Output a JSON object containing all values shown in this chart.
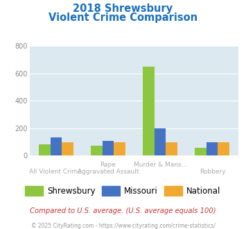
{
  "title_line1": "2018 Shrewsbury",
  "title_line2": "Violent Crime Comparison",
  "cat_labels_top": [
    "",
    "Rape",
    "Murder & Mans...",
    ""
  ],
  "cat_labels_bot": [
    "All Violent Crime",
    "Aggravated Assault",
    "",
    "Robbery"
  ],
  "shrewsbury": [
    85,
    75,
    650,
    60
  ],
  "missouri": [
    135,
    110,
    200,
    100
  ],
  "national": [
    100,
    100,
    100,
    100
  ],
  "colors": {
    "shrewsbury": "#8dc63f",
    "missouri": "#4472c4",
    "national": "#f0a830"
  },
  "ylim": [
    0,
    800
  ],
  "yticks": [
    0,
    200,
    400,
    600,
    800
  ],
  "background_color": "#dce9f0",
  "title_color": "#1a6fbe",
  "label_color": "#aaaaaa",
  "footnote1": "Compared to U.S. average. (U.S. average equals 100)",
  "footnote2": "© 2025 CityRating.com - https://www.cityrating.com/crime-statistics/",
  "legend_labels": [
    "Shrewsbury",
    "Missouri",
    "National"
  ]
}
